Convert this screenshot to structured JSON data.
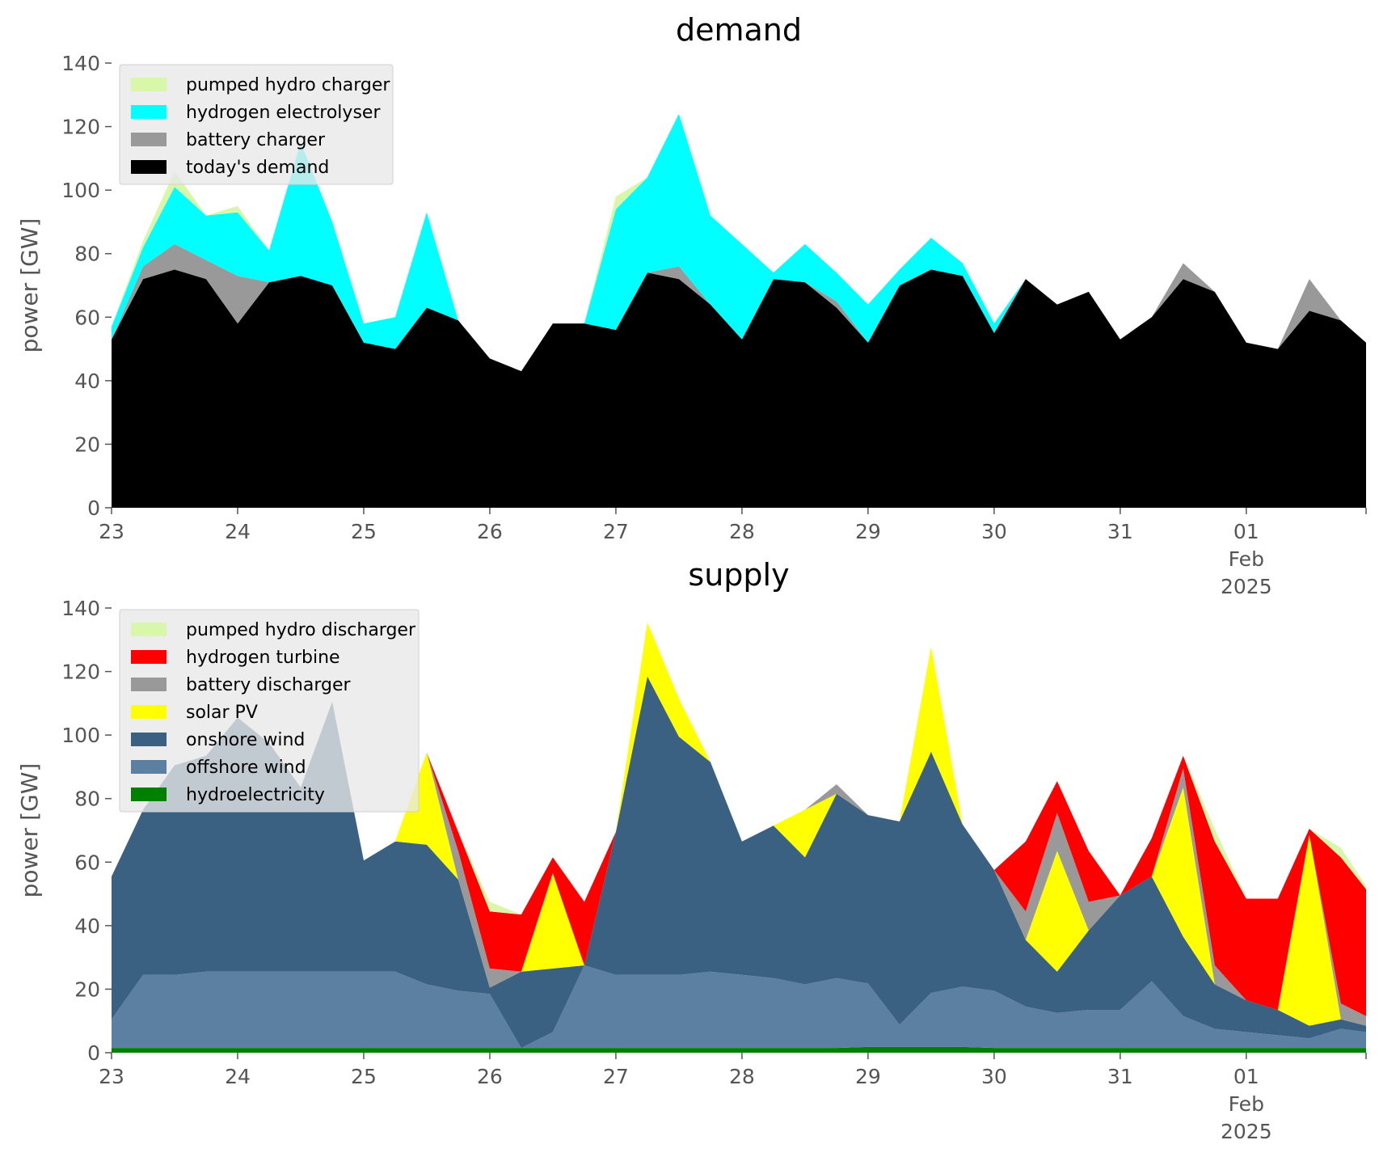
{
  "chart_data": [
    {
      "type": "area",
      "title": "demand",
      "ylabel": "power [GW]",
      "ylim": [
        0,
        140
      ],
      "yticks": [
        0,
        20,
        40,
        60,
        80,
        100,
        120,
        140
      ],
      "x_units": "day offset from 23 Jan 2025",
      "xlim": [
        0,
        9.95
      ],
      "xticks": [
        {
          "label": "23",
          "x": 0
        },
        {
          "label": "24",
          "x": 1
        },
        {
          "label": "25",
          "x": 2
        },
        {
          "label": "26",
          "x": 3
        },
        {
          "label": "27",
          "x": 4
        },
        {
          "label": "28",
          "x": 5
        },
        {
          "label": "29",
          "x": 6
        },
        {
          "label": "30",
          "x": 7
        },
        {
          "label": "31",
          "x": 8
        },
        {
          "label": "01",
          "label2": "Feb",
          "label3": "2025",
          "x": 9
        }
      ],
      "legend_position": "top-left",
      "x": [
        0,
        0.25,
        0.5,
        0.75,
        1,
        1.25,
        1.5,
        1.75,
        2,
        2.25,
        2.5,
        2.75,
        3,
        3.25,
        3.5,
        3.75,
        4,
        4.25,
        4.5,
        4.75,
        5,
        5.25,
        5.5,
        5.75,
        6,
        6.25,
        6.5,
        6.75,
        7,
        7.25,
        7.5,
        7.75,
        8,
        8.25,
        8.5,
        8.75,
        9,
        9.25,
        9.5,
        9.75,
        9.95
      ],
      "series": [
        {
          "name": "today's demand",
          "color": "#000000",
          "values": [
            53,
            72,
            75,
            72,
            58,
            71,
            73,
            70,
            52,
            50,
            63,
            59,
            47,
            43,
            58,
            58,
            56,
            74,
            72,
            64,
            53,
            72,
            71,
            63,
            52,
            70,
            75,
            73,
            55,
            72,
            64,
            68,
            53,
            60,
            72,
            68,
            52,
            50,
            62,
            59,
            52
          ]
        },
        {
          "name": "battery charger",
          "color": "#999999",
          "values": [
            0,
            4,
            8,
            6,
            15,
            0,
            0,
            0,
            0,
            0,
            0,
            0,
            0,
            0,
            0,
            0,
            0,
            0,
            4,
            0,
            0,
            0,
            0,
            2,
            0,
            0,
            0,
            0,
            0,
            0,
            0,
            0,
            0,
            0,
            5,
            0,
            0,
            0,
            10,
            0,
            0
          ]
        },
        {
          "name": "hydrogen electrolyser",
          "color": "#00ffff",
          "values": [
            4,
            6,
            18,
            14,
            20,
            10,
            42,
            20,
            6,
            10,
            30,
            0,
            0,
            0,
            0,
            0,
            38,
            30,
            48,
            28,
            30,
            2,
            12,
            9,
            12,
            5,
            10,
            4,
            3,
            0,
            0,
            0,
            0,
            0,
            0,
            0,
            0,
            0,
            0,
            0,
            0
          ]
        },
        {
          "name": "pumped hydro charger",
          "color": "#d9f7a8",
          "values": [
            0,
            2,
            5,
            0,
            2,
            0,
            0,
            0,
            0,
            0,
            0,
            0,
            0,
            0,
            0,
            0,
            4,
            0,
            0,
            0,
            0,
            0,
            0,
            0,
            0,
            0,
            0,
            0,
            0,
            0,
            0,
            0,
            0,
            0,
            0,
            0,
            0,
            0,
            0,
            0,
            0
          ]
        }
      ]
    },
    {
      "type": "area",
      "title": "supply",
      "ylabel": "power [GW]",
      "ylim": [
        0,
        140
      ],
      "yticks": [
        0,
        20,
        40,
        60,
        80,
        100,
        120,
        140
      ],
      "x_units": "day offset from 23 Jan 2025",
      "xlim": [
        0,
        9.95
      ],
      "xticks": [
        {
          "label": "23",
          "x": 0
        },
        {
          "label": "24",
          "x": 1
        },
        {
          "label": "25",
          "x": 2
        },
        {
          "label": "26",
          "x": 3
        },
        {
          "label": "27",
          "x": 4
        },
        {
          "label": "28",
          "x": 5
        },
        {
          "label": "29",
          "x": 6
        },
        {
          "label": "30",
          "x": 7
        },
        {
          "label": "31",
          "x": 8
        },
        {
          "label": "01",
          "label2": "Feb",
          "label3": "2025",
          "x": 9
        }
      ],
      "legend_position": "top-left",
      "x": [
        0,
        0.25,
        0.5,
        0.75,
        1,
        1.25,
        1.5,
        1.75,
        2,
        2.25,
        2.5,
        2.75,
        3,
        3.25,
        3.5,
        3.75,
        4,
        4.25,
        4.5,
        4.75,
        5,
        5.25,
        5.5,
        5.75,
        6,
        6.25,
        6.5,
        6.75,
        7,
        7.25,
        7.5,
        7.75,
        8,
        8.25,
        8.5,
        8.75,
        9,
        9.25,
        9.5,
        9.75,
        9.95
      ],
      "series": [
        {
          "name": "hydroelectricity",
          "color": "#008000",
          "values": [
            1.5,
            1.5,
            1.5,
            1.5,
            1.5,
            1.5,
            1.5,
            1.5,
            1.5,
            1.5,
            1.5,
            1.5,
            1.5,
            1.5,
            1.5,
            1.5,
            1.5,
            1.5,
            1.5,
            1.5,
            1.5,
            1.5,
            1.5,
            1.5,
            1.8,
            1.8,
            1.8,
            1.8,
            1.5,
            1.5,
            1.5,
            1.5,
            1.5,
            1.5,
            1.5,
            1.5,
            1.5,
            1.5,
            1.5,
            1.5,
            1.5
          ]
        },
        {
          "name": "offshore wind",
          "color": "#5b80a2",
          "values": [
            9,
            23,
            23,
            24,
            24,
            24,
            24,
            24,
            24,
            24,
            20,
            18,
            17,
            0,
            5,
            26,
            23,
            23,
            23,
            24,
            23,
            22,
            20,
            22,
            20,
            7,
            17,
            19,
            18,
            13,
            11,
            12,
            12,
            21,
            10,
            6,
            5,
            4,
            3,
            6,
            5
          ]
        },
        {
          "name": "onshore wind",
          "color": "#3b6182",
          "values": [
            45,
            52,
            66,
            68,
            80,
            72,
            58,
            85,
            35,
            41,
            44,
            35,
            2,
            24,
            20,
            0,
            45,
            94,
            75,
            66,
            42,
            48,
            40,
            58,
            53,
            64,
            76,
            51,
            38,
            21,
            13,
            25,
            36,
            33,
            25,
            14,
            10,
            8,
            4,
            3,
            2
          ]
        },
        {
          "name": "solar PV",
          "color": "#ffff00",
          "values": [
            0,
            0,
            0,
            0,
            0,
            0,
            0,
            0,
            0,
            0,
            29,
            0,
            0,
            0,
            30,
            0,
            0,
            17,
            12,
            0,
            0,
            0,
            15,
            0,
            0,
            0,
            33,
            0,
            0,
            0,
            38,
            0,
            0,
            0,
            47,
            0,
            0,
            0,
            60,
            0,
            0
          ]
        },
        {
          "name": "battery discharger",
          "color": "#999999",
          "values": [
            0,
            0,
            0,
            0,
            0,
            0,
            0,
            0,
            0,
            0,
            0,
            9,
            6,
            0,
            0,
            0,
            0,
            0,
            0,
            0,
            0,
            0,
            0,
            3,
            0,
            0,
            0,
            0,
            0,
            9,
            12,
            9,
            0,
            0,
            6,
            6,
            0,
            0,
            0,
            5,
            3
          ]
        },
        {
          "name": "hydrogen turbine",
          "color": "#ff0000",
          "values": [
            0,
            0,
            0,
            0,
            0,
            0,
            0,
            0,
            0,
            0,
            0,
            6,
            18,
            18,
            5,
            20,
            0,
            0,
            0,
            0,
            0,
            0,
            0,
            0,
            0,
            0,
            0,
            0,
            0,
            22,
            10,
            16,
            0,
            12,
            4,
            39,
            32,
            35,
            2,
            46,
            40
          ]
        },
        {
          "name": "pumped hydro discharger",
          "color": "#d9f7a8",
          "values": [
            0,
            0,
            0,
            0,
            0,
            0,
            0,
            0,
            0,
            0,
            0,
            0,
            3,
            0,
            0,
            0,
            0,
            0,
            0,
            0,
            0,
            0,
            0,
            0,
            0,
            0,
            0,
            0,
            0,
            0,
            0,
            0,
            0,
            0,
            0,
            4,
            0,
            0,
            0,
            3,
            1
          ]
        }
      ]
    }
  ]
}
